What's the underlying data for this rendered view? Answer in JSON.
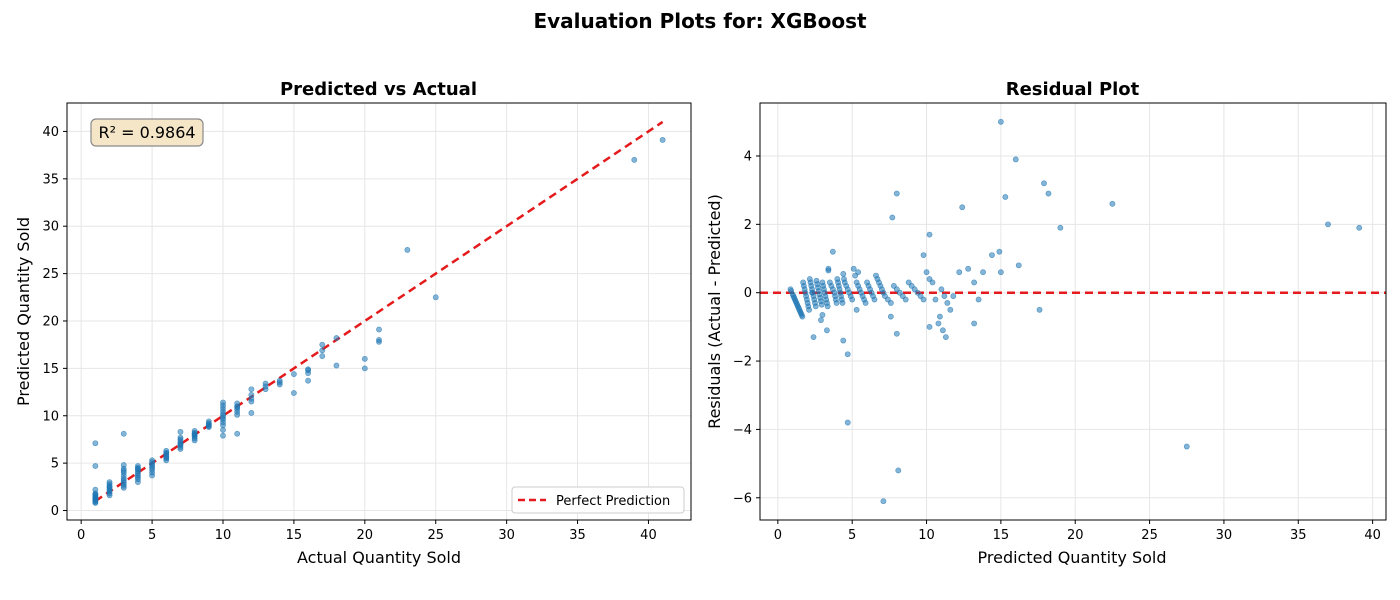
{
  "figure": {
    "title": "Evaluation Plots for: XGBoost"
  },
  "chart_data": [
    {
      "type": "scatter",
      "title": "Predicted vs Actual",
      "xlabel": "Actual Quantity Sold",
      "ylabel": "Predicted Quantity Sold",
      "xlim": [
        -1.0,
        43.0
      ],
      "ylim": [
        -1.0,
        43.0
      ],
      "xticks": [
        0,
        5,
        10,
        15,
        20,
        25,
        30,
        35,
        40
      ],
      "yticks": [
        0,
        5,
        10,
        15,
        20,
        25,
        30,
        35,
        40
      ],
      "grid": true,
      "point_color": "#1f77b4",
      "annotation": "R² = 0.9864",
      "reference_line": {
        "name": "Perfect Prediction",
        "x": [
          1,
          41
        ],
        "y": [
          1,
          41
        ],
        "color": "#e41a1c",
        "style": "dashed"
      },
      "legend": {
        "position": "lower-right",
        "entries": [
          "Perfect Prediction"
        ]
      },
      "points": {
        "x": [
          1,
          1,
          1,
          1,
          1,
          1,
          1,
          1,
          1,
          1,
          1,
          1,
          1,
          1,
          1,
          2,
          2,
          2,
          2,
          2,
          2,
          2,
          2,
          2,
          2,
          3,
          3,
          3,
          3,
          3,
          3,
          3,
          3,
          3,
          3,
          3,
          3,
          4,
          4,
          4,
          4,
          4,
          4,
          4,
          4,
          4,
          4,
          5,
          5,
          5,
          5,
          5,
          5,
          5,
          5,
          6,
          6,
          6,
          6,
          6,
          6,
          6,
          6,
          7,
          7,
          7,
          7,
          7,
          7,
          7,
          7,
          7,
          8,
          8,
          8,
          8,
          8,
          8,
          8,
          8,
          9,
          9,
          9,
          9,
          9,
          9,
          10,
          10,
          10,
          10,
          10,
          10,
          10,
          10,
          10,
          10,
          10,
          10,
          11,
          11,
          11,
          11,
          11,
          11,
          11,
          12,
          12,
          12,
          12,
          12,
          13,
          13,
          13,
          14,
          14,
          14,
          15,
          15,
          16,
          16,
          16,
          16,
          17,
          17,
          17,
          18,
          18,
          20,
          20,
          21,
          21,
          21,
          23,
          25,
          39,
          41
        ],
        "y": [
          7.1,
          4.7,
          2.2,
          1.8,
          1.6,
          1.4,
          1.3,
          1.2,
          1.1,
          1.0,
          0.9,
          1.5,
          1.7,
          0.8,
          1.25,
          3.0,
          2.8,
          2.6,
          2.4,
          2.2,
          2.0,
          1.8,
          1.6,
          2.5,
          2.1,
          8.1,
          4.8,
          4.4,
          4.0,
          3.7,
          3.4,
          3.2,
          3.0,
          2.8,
          2.6,
          2.4,
          4.2,
          4.7,
          4.5,
          4.3,
          4.1,
          3.9,
          3.7,
          3.5,
          3.3,
          3.0,
          4.4,
          5.3,
          5.1,
          4.9,
          4.7,
          4.5,
          4.3,
          4.0,
          3.7,
          6.3,
          6.1,
          5.9,
          5.7,
          5.5,
          5.3,
          6.0,
          5.6,
          8.3,
          7.5,
          7.3,
          7.1,
          6.9,
          6.7,
          6.5,
          7.7,
          7.0,
          8.4,
          8.2,
          8.0,
          7.8,
          7.6,
          7.4,
          8.1,
          7.9,
          9.4,
          9.2,
          9.0,
          8.8,
          9.1,
          8.9,
          11.4,
          11.1,
          10.8,
          10.5,
          10.2,
          10.0,
          9.8,
          9.6,
          9.3,
          9.0,
          8.5,
          7.9,
          11.3,
          11.0,
          10.7,
          10.4,
          10.1,
          8.1,
          10.9,
          12.8,
          12.2,
          11.8,
          11.5,
          10.3,
          13.4,
          13.1,
          12.8,
          13.5,
          13.3,
          13.7,
          12.4,
          14.4,
          14.9,
          14.8,
          13.7,
          14.5,
          17.5,
          16.3,
          16.9,
          18.2,
          15.3,
          16.0,
          15.0,
          19.1,
          18.0,
          17.8,
          27.5,
          22.5,
          37.0,
          39.1
        ]
      }
    },
    {
      "type": "scatter",
      "title": "Residual Plot",
      "xlabel": "Predicted Quantity Sold",
      "ylabel": "Residuals (Actual - Predicted)",
      "xlim": [
        -1.2,
        40.9
      ],
      "ylim": [
        -6.65,
        5.55
      ],
      "xticks": [
        0,
        5,
        10,
        15,
        20,
        25,
        30,
        35,
        40
      ],
      "yticks": [
        -6,
        -4,
        -2,
        0,
        2,
        4
      ],
      "grid": true,
      "point_color": "#1f77b4",
      "reference_line": {
        "y": 0,
        "color": "#e41a1c",
        "style": "dashed"
      },
      "points": {
        "x": [
          0.85,
          0.9,
          1.0,
          1.05,
          1.1,
          1.15,
          1.2,
          1.25,
          1.3,
          1.35,
          1.4,
          1.45,
          1.5,
          1.55,
          1.6,
          1.65,
          1.7,
          1.75,
          1.8,
          1.85,
          1.9,
          1.95,
          2.0,
          2.05,
          2.1,
          2.15,
          2.2,
          2.25,
          2.3,
          2.35,
          2.4,
          2.45,
          2.5,
          2.55,
          2.6,
          2.65,
          2.7,
          2.75,
          2.8,
          2.85,
          2.9,
          2.95,
          3.0,
          3.05,
          3.1,
          3.15,
          3.2,
          3.25,
          3.3,
          3.35,
          3.4,
          3.5,
          3.6,
          3.7,
          3.8,
          3.85,
          3.9,
          3.95,
          4.0,
          4.05,
          4.1,
          4.15,
          4.2,
          4.25,
          4.3,
          4.35,
          4.4,
          4.45,
          4.5,
          4.6,
          4.7,
          4.8,
          4.9,
          5.0,
          5.1,
          5.2,
          5.3,
          5.4,
          5.5,
          5.6,
          5.7,
          5.8,
          5.9,
          6.0,
          6.1,
          6.2,
          6.3,
          6.4,
          6.5,
          6.6,
          6.7,
          6.8,
          6.9,
          7.0,
          7.1,
          7.2,
          7.4,
          7.6,
          7.8,
          8.0,
          8.2,
          8.4,
          8.6,
          8.8,
          9.0,
          9.2,
          9.4,
          9.6,
          9.8,
          10.0,
          10.2,
          10.4,
          10.6,
          10.8,
          11.0,
          11.2,
          11.4,
          11.6,
          11.8,
          12.2,
          12.8,
          13.2,
          13.5,
          13.8,
          14.4,
          14.9,
          15.0,
          16.0,
          16.2,
          17.6,
          17.9,
          18.2,
          19.0,
          22.5,
          27.5,
          37.0,
          39.1,
          15.0,
          15.3,
          12.4,
          8.0,
          7.7,
          9.8,
          10.2,
          3.7,
          4.7,
          4.7,
          8.1,
          7.1,
          2.4,
          2.9,
          3.3,
          3.4,
          2.3,
          4.4,
          5.3,
          5.4,
          11.3,
          13.2,
          10.9,
          8.0,
          7.6,
          10.2,
          11.1,
          3.0
        ],
        "y": [
          0.1,
          0.05,
          -0.05,
          -0.1,
          -0.15,
          -0.2,
          -0.25,
          -0.3,
          -0.35,
          -0.4,
          -0.45,
          -0.5,
          -0.55,
          -0.6,
          -0.65,
          -0.7,
          0.3,
          0.2,
          0.1,
          0.0,
          -0.1,
          -0.2,
          -0.3,
          -0.4,
          -0.5,
          0.4,
          0.3,
          0.2,
          0.1,
          0.0,
          -0.1,
          -0.2,
          -0.3,
          -0.4,
          0.35,
          0.25,
          0.15,
          0.05,
          -0.05,
          -0.15,
          -0.25,
          -0.35,
          0.3,
          0.2,
          0.1,
          0.0,
          -0.1,
          -0.2,
          -0.3,
          -0.4,
          0.65,
          0.3,
          0.2,
          0.1,
          0.0,
          -0.1,
          -0.2,
          -0.3,
          0.4,
          0.3,
          0.2,
          0.1,
          0.0,
          -0.1,
          -0.2,
          -0.3,
          0.55,
          0.4,
          0.3,
          0.2,
          0.1,
          0.0,
          -0.1,
          -0.2,
          0.7,
          0.5,
          0.3,
          0.2,
          0.1,
          0.0,
          -0.1,
          -0.2,
          -0.3,
          0.3,
          0.2,
          0.1,
          0.0,
          -0.1,
          -0.2,
          0.5,
          0.4,
          0.3,
          0.2,
          0.1,
          0.0,
          -0.1,
          -0.2,
          -0.3,
          0.2,
          0.1,
          0.0,
          -0.1,
          -0.2,
          0.3,
          0.2,
          0.1,
          0.0,
          -0.1,
          -0.2,
          0.6,
          0.4,
          0.3,
          -0.2,
          -0.9,
          0.1,
          -0.1,
          -0.3,
          -0.5,
          -0.1,
          0.6,
          0.7,
          0.3,
          -0.2,
          0.6,
          1.1,
          1.2,
          0.6,
          3.9,
          0.8,
          -0.5,
          3.2,
          2.9,
          1.9,
          2.6,
          -4.5,
          2.0,
          1.9,
          5.0,
          2.8,
          2.5,
          2.9,
          2.2,
          1.1,
          1.7,
          1.2,
          -3.8,
          -1.8,
          -5.2,
          -6.1,
          -1.3,
          -0.8,
          -1.1,
          0.7,
          0.0,
          -1.4,
          -0.5,
          0.6,
          -1.3,
          -0.9,
          -0.7,
          -1.2,
          -0.7,
          -1.0,
          -1.1,
          -0.65
        ]
      }
    }
  ]
}
